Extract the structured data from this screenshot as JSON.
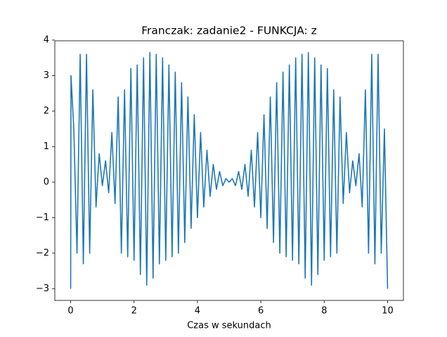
{
  "chart_data": {
    "type": "line",
    "title": "Franczak: zadanie2 - FUNKCJA: z",
    "xlabel": "Czas w sekundach",
    "xlim": [
      -0.5,
      10.5
    ],
    "ylim": [
      -3.33,
      3.98
    ],
    "xticks": [
      0,
      2,
      4,
      6,
      8,
      10
    ],
    "yticks": [
      {
        "value": -3,
        "label": "−3"
      },
      {
        "value": -2,
        "label": "−2"
      },
      {
        "value": -1,
        "label": "−1"
      },
      0,
      1,
      2,
      3,
      4
    ],
    "x": [
      0,
      0.01,
      0.1,
      0.2,
      0.3,
      0.4,
      0.5,
      0.6,
      0.7,
      0.8,
      0.9,
      1.0,
      1.1,
      1.2,
      1.3,
      1.4,
      1.5,
      1.6,
      1.7,
      1.8,
      1.9,
      2.0,
      2.1,
      2.2,
      2.3,
      2.4,
      2.5,
      2.6,
      2.7,
      2.8,
      2.9,
      3.0,
      3.1,
      3.2,
      3.3,
      3.4,
      3.5,
      3.6,
      3.7,
      3.8,
      3.9,
      4.0,
      4.1,
      4.2,
      4.3,
      4.4,
      4.5,
      4.6,
      4.7,
      4.8,
      4.9,
      5.0,
      5.1,
      5.2,
      5.3,
      5.4,
      5.5,
      5.6,
      5.7,
      5.8,
      5.9,
      6.0,
      6.1,
      6.2,
      6.3,
      6.4,
      6.5,
      6.6,
      6.7,
      6.8,
      6.9,
      7.0,
      7.1,
      7.2,
      7.3,
      7.4,
      7.5,
      7.6,
      7.7,
      7.8,
      7.9,
      8.0,
      8.1,
      8.2,
      8.3,
      8.4,
      8.5,
      8.6,
      8.7,
      8.8,
      8.9,
      9.0,
      9.1,
      9.2,
      9.3,
      9.4,
      9.5,
      9.6,
      9.7,
      9.8,
      9.9,
      10
    ],
    "series": [
      {
        "color": "#1f77b4",
        "values": [
          -3,
          3,
          1.5,
          -2.0,
          3.6,
          -2.3,
          3.6,
          -2.0,
          2.6,
          -0.7,
          0.8,
          -0.1,
          0.6,
          -0.3,
          1.4,
          -0.6,
          2.4,
          -2.0,
          2.6,
          -2.1,
          3.2,
          -2.2,
          3.3,
          -2.6,
          3.5,
          -2.9,
          3.65,
          -2.7,
          3.6,
          -2.3,
          3.5,
          -2.2,
          3.3,
          -2.1,
          3.1,
          -2.0,
          2.8,
          -1.7,
          2.4,
          -1.3,
          1.9,
          -1.0,
          1.4,
          -0.7,
          0.9,
          -0.4,
          0.5,
          -0.2,
          0.3,
          -0.1,
          0.1,
          0,
          0.1,
          -0.1,
          0.3,
          -0.2,
          0.5,
          -0.4,
          0.9,
          -0.7,
          1.4,
          -1.0,
          1.9,
          -1.3,
          2.4,
          -1.7,
          2.8,
          -2.0,
          3.1,
          -2.1,
          3.3,
          -2.2,
          3.5,
          -2.3,
          3.6,
          -2.7,
          3.65,
          -2.9,
          3.5,
          -2.6,
          3.3,
          -2.2,
          3.2,
          -2.1,
          2.6,
          -2.0,
          2.4,
          -0.6,
          1.4,
          -0.3,
          0.6,
          -0.1,
          0.8,
          -0.7,
          2.6,
          -2.0,
          3.6,
          -2.3,
          3.6,
          -2.0,
          1.5,
          -3
        ]
      }
    ]
  }
}
